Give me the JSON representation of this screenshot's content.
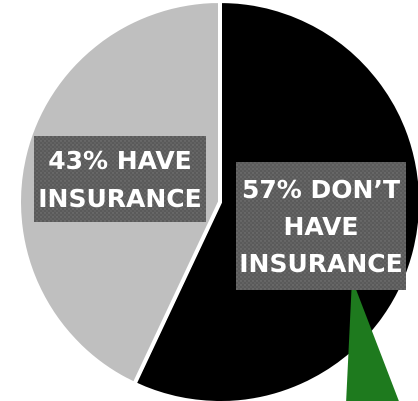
{
  "chart_data": {
    "type": "pie",
    "title": "",
    "legend": "none",
    "slices": [
      {
        "value": 57,
        "color": "#000000",
        "label_lines": [
          "57% DON’T",
          "HAVE",
          "INSURANCE"
        ]
      },
      {
        "value": 43,
        "color": "#bfbfbf",
        "label_lines": [
          "43% HAVE",
          "INSURANCE"
        ]
      }
    ],
    "label_box_color": "#595959",
    "annotation": {
      "shape": "triangle",
      "color": "#1e7a1e"
    }
  }
}
